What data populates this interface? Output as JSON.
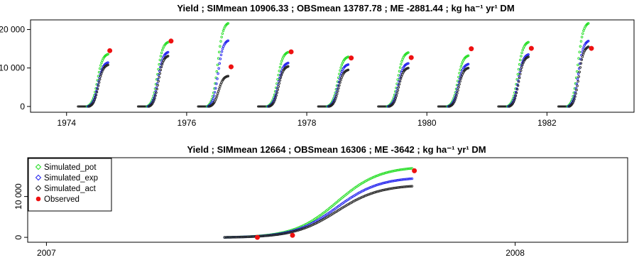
{
  "colors": {
    "Simulated_pot": "#22dd22",
    "Simulated_exp": "#2222ee",
    "Simulated_act": "#222222",
    "Observed": "#ee1111"
  },
  "chart_data": [
    {
      "type": "scatter",
      "title": "Yield ;  SIMmean 10906.33 ;  OBSmean 13787.78 ;  ME -2881.44 ;  kg ha⁻¹ yr¹ DM",
      "xlabel": "",
      "ylabel": "",
      "xlim": [
        1973.4,
        1983.45
      ],
      "ylim": [
        -1500,
        22500
      ],
      "xticks": [
        1974,
        1976,
        1978,
        1980,
        1982
      ],
      "xtick_labels": [
        "1974",
        "1976",
        "1978",
        "1980",
        "1982"
      ],
      "yticks": [
        0,
        10000,
        20000
      ],
      "ytick_labels": [
        "0",
        "10 000",
        "20 000"
      ],
      "grid": false,
      "seasons": [
        {
          "start": 1974.32,
          "end": 1974.69,
          "pot": 13600,
          "exp": 11400,
          "act": 10800,
          "obs_x": 1974.72,
          "obs_y": 14500
        },
        {
          "start": 1975.32,
          "end": 1975.69,
          "pot": 16700,
          "exp": 14100,
          "act": 13100,
          "obs_x": 1975.74,
          "obs_y": 17000
        },
        {
          "start": 1976.32,
          "end": 1976.69,
          "pot": 21600,
          "exp": 17100,
          "act": 7900,
          "obs_x": 1976.74,
          "obs_y": 10300
        },
        {
          "start": 1977.32,
          "end": 1977.69,
          "pot": 14100,
          "exp": 11300,
          "act": 10400,
          "obs_x": 1977.74,
          "obs_y": 14200
        },
        {
          "start": 1978.32,
          "end": 1978.69,
          "pot": 12900,
          "exp": 10900,
          "act": 9500,
          "obs_x": 1978.74,
          "obs_y": 12600
        },
        {
          "start": 1979.32,
          "end": 1979.69,
          "pot": 14000,
          "exp": 11200,
          "act": 10000,
          "obs_x": 1979.74,
          "obs_y": 12700
        },
        {
          "start": 1980.32,
          "end": 1980.69,
          "pot": 13200,
          "exp": 11000,
          "act": 10000,
          "obs_x": 1980.74,
          "obs_y": 15000
        },
        {
          "start": 1981.32,
          "end": 1981.69,
          "pot": 16700,
          "exp": 13500,
          "act": 12900,
          "obs_x": 1981.74,
          "obs_y": 15100
        },
        {
          "start": 1982.32,
          "end": 1982.69,
          "pot": 21600,
          "exp": 17000,
          "act": 15500,
          "obs_x": 1982.74,
          "obs_y": 15100
        }
      ]
    },
    {
      "type": "scatter",
      "title": "Yield ;  SIMmean 12664 ;  OBSmean 16306 ;  ME -3642 ;  kg ha⁻¹ yr¹ DM",
      "xlabel": "",
      "ylabel": "",
      "xlim": [
        2006.96,
        2008.24
      ],
      "ylim": [
        -1200,
        19500
      ],
      "xticks": [
        2007,
        2008
      ],
      "xtick_labels": [
        "2007",
        "2008"
      ],
      "yticks": [
        0,
        10000
      ],
      "ytick_labels": [
        "0",
        "10 000"
      ],
      "grid": false,
      "legend": {
        "position": "top-left",
        "entries": [
          "Simulated_pot",
          "Simulated_exp",
          "Simulated_act",
          "Observed"
        ]
      },
      "season": {
        "start": 2007.38,
        "rise_mid": 2007.62,
        "end": 2007.78,
        "pot": 17400,
        "exp": 14800,
        "act": 12900
      },
      "observed": [
        {
          "x": 2007.45,
          "y": 0
        },
        {
          "x": 2007.525,
          "y": 500
        },
        {
          "x": 2007.785,
          "y": 16300
        }
      ]
    }
  ]
}
